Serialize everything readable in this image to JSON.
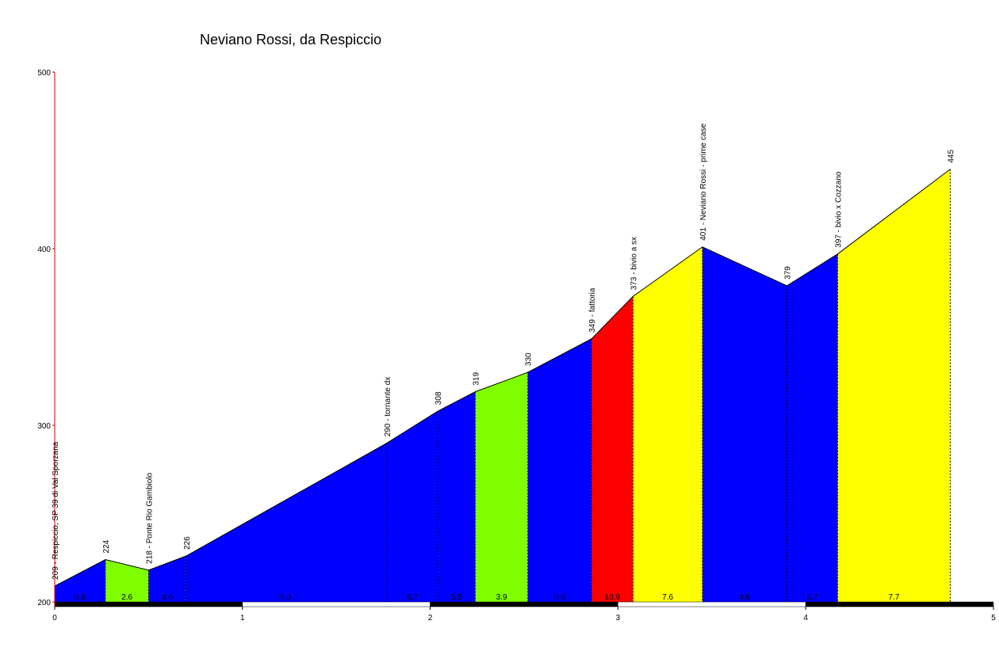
{
  "chart_data": {
    "type": "area",
    "title": "Neviano Rossi, da Respiccio",
    "xlabel": "",
    "ylabel": "",
    "xlim": [
      0,
      5
    ],
    "ylim": [
      200,
      500
    ],
    "x_ticks": [
      "0",
      "1",
      "2",
      "3",
      "4",
      "5"
    ],
    "y_ticks": [
      "200",
      "300",
      "400",
      "500"
    ],
    "grid": false,
    "legend": "none",
    "points": [
      {
        "x": 0.0,
        "y": 209,
        "label": "209 - Respiccio, SP 39 di Val Sporzana"
      },
      {
        "x": 0.27,
        "y": 224,
        "label": "224"
      },
      {
        "x": 0.5,
        "y": 218,
        "label": "218 - Ponte Rio Gambiolo"
      },
      {
        "x": 0.7,
        "y": 226,
        "label": "226"
      },
      {
        "x": 1.77,
        "y": 290,
        "label": "290 - tornante dx"
      },
      {
        "x": 2.04,
        "y": 308,
        "label": "308"
      },
      {
        "x": 2.24,
        "y": 319,
        "label": "319"
      },
      {
        "x": 2.52,
        "y": 330,
        "label": "330"
      },
      {
        "x": 2.86,
        "y": 349,
        "label": "349 - fattoria"
      },
      {
        "x": 3.08,
        "y": 373,
        "label": "373 - bivio a sx"
      },
      {
        "x": 3.45,
        "y": 401,
        "label": "401 - Neviano Rossi - prime case"
      },
      {
        "x": 3.9,
        "y": 379,
        "label": "379"
      },
      {
        "x": 4.17,
        "y": 397,
        "label": "397 - bivio x Cozzano"
      },
      {
        "x": 4.77,
        "y": 445,
        "label": "445"
      }
    ],
    "segments": [
      {
        "from": 0.0,
        "to": 0.27,
        "gradient": "5.6",
        "color": "#0000ff"
      },
      {
        "from": 0.27,
        "to": 0.5,
        "gradient": "2.6",
        "color": "#80ff00"
      },
      {
        "from": 0.5,
        "to": 0.7,
        "gradient": "4.0",
        "color": "#0000ff"
      },
      {
        "from": 0.7,
        "to": 2.04,
        "gradient": "6.0",
        "color": "#0000ff"
      },
      {
        "from": 1.77,
        "to": 2.04,
        "gradient": "6.7",
        "color": "#0000ff"
      },
      {
        "from": 2.04,
        "to": 2.24,
        "gradient": "5.5",
        "color": "#0000ff"
      },
      {
        "from": 2.24,
        "to": 2.52,
        "gradient": "3.9",
        "color": "#80ff00"
      },
      {
        "from": 2.52,
        "to": 2.86,
        "gradient": "5.6",
        "color": "#0000ff"
      },
      {
        "from": 2.86,
        "to": 3.08,
        "gradient": "10.9",
        "color": "#ff0000"
      },
      {
        "from": 3.08,
        "to": 3.45,
        "gradient": "7.6",
        "color": "#ffff00"
      },
      {
        "from": 3.45,
        "to": 3.9,
        "gradient": "4.9",
        "color": "#0000ff"
      },
      {
        "from": 3.9,
        "to": 4.17,
        "gradient": "6.7",
        "color": "#0000ff"
      },
      {
        "from": 4.17,
        "to": 4.77,
        "gradient": "7.7",
        "color": "#ffff00"
      }
    ],
    "colors": {
      "blue": "#0000ff",
      "green": "#80ff00",
      "red": "#ff0000",
      "yellow": "#ffff00",
      "axis": "#000000",
      "y_axis": "#cc0000"
    }
  }
}
